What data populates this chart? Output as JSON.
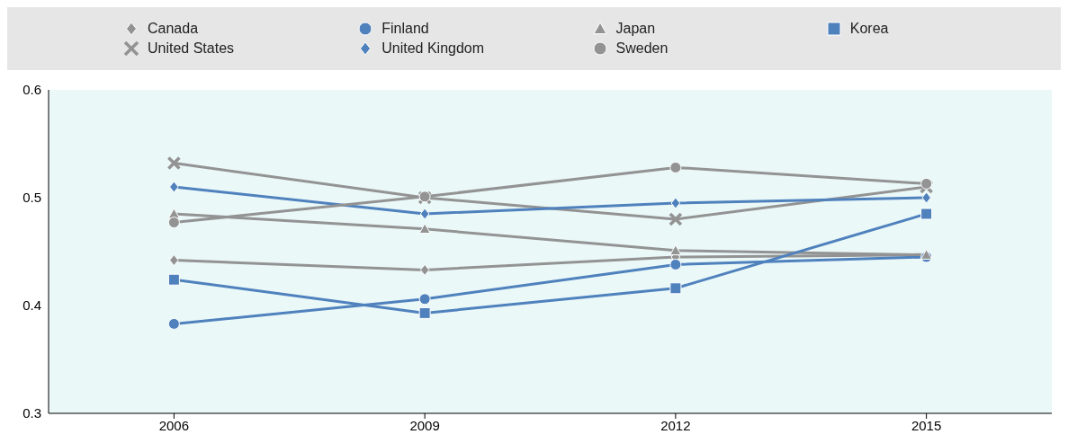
{
  "chart_data": {
    "type": "line",
    "categories": [
      "2006",
      "2009",
      "2012",
      "2015"
    ],
    "ylim": [
      0.3,
      0.6
    ],
    "yticks": [
      0.3,
      0.4,
      0.5,
      0.6
    ],
    "grid": false,
    "legend": "top",
    "series": [
      {
        "name": "Canada",
        "color": "#939393",
        "marker": "diamond",
        "values": [
          0.442,
          0.433,
          0.445,
          0.447
        ]
      },
      {
        "name": "Finland",
        "color": "#4f81bd",
        "marker": "circle",
        "values": [
          0.383,
          0.406,
          0.438,
          0.445
        ]
      },
      {
        "name": "Japan",
        "color": "#939393",
        "marker": "triangle",
        "values": [
          0.485,
          0.471,
          0.451,
          0.447
        ]
      },
      {
        "name": "Korea",
        "color": "#4f81bd",
        "marker": "square",
        "values": [
          0.424,
          0.393,
          0.416,
          0.485
        ]
      },
      {
        "name": "United States",
        "color": "#939393",
        "marker": "cross",
        "values": [
          0.532,
          0.5,
          0.48,
          0.51
        ]
      },
      {
        "name": "United Kingdom",
        "color": "#4f81bd",
        "marker": "diamond",
        "values": [
          0.51,
          0.485,
          0.495,
          0.5
        ]
      },
      {
        "name": "Sweden",
        "color": "#939393",
        "marker": "circle",
        "values": [
          0.477,
          0.501,
          0.528,
          0.513
        ]
      }
    ]
  }
}
